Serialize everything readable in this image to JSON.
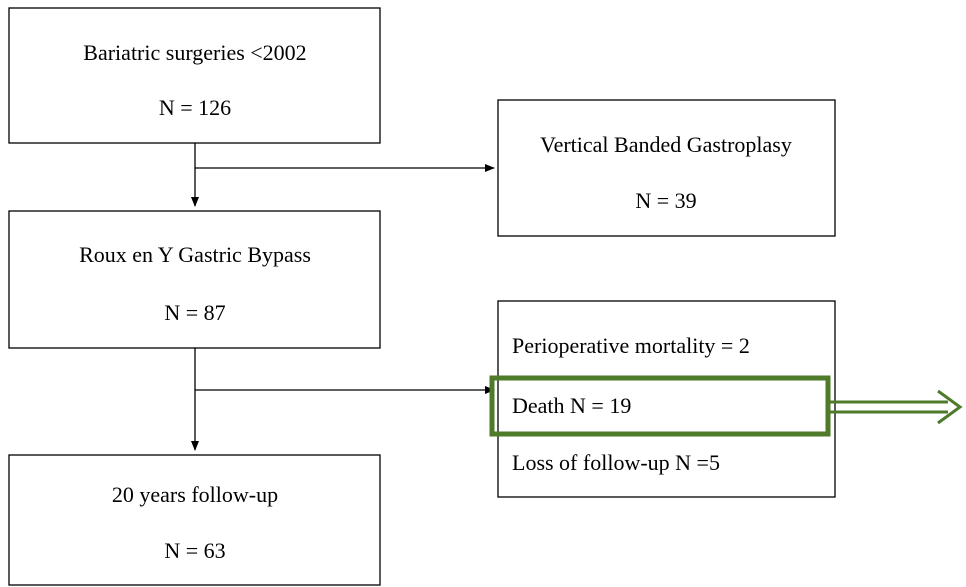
{
  "nodes": [
    {
      "label": "Bariatric surgeries <2002",
      "count": "N = 126"
    },
    {
      "label": "Vertical Banded Gastroplasy",
      "count": "N = 39"
    },
    {
      "label": "Roux en Y Gastric Bypass",
      "count": "N = 87"
    },
    {
      "lines": [
        "Perioperative mortality = 2",
        "Death N = 19",
        "Loss of follow-up N =5"
      ]
    },
    {
      "label": "20 years follow-up",
      "count": "N = 63"
    }
  ]
}
